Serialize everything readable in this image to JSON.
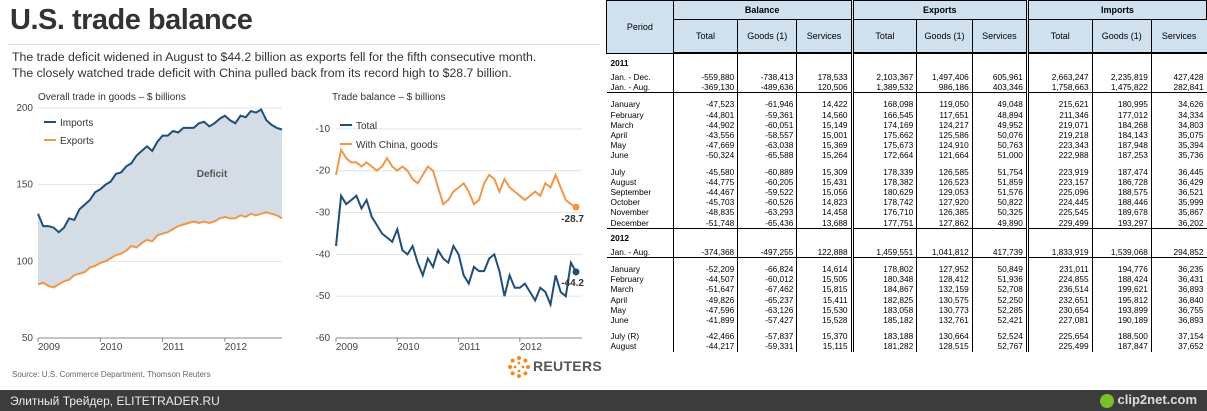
{
  "title": "U.S. trade balance",
  "subtitle_line1": "The trade deficit widened in August to $44.2 billion as exports fell for the fifth consecutive month.",
  "subtitle_line2": "The closely watched trade deficit with China pulled back from its record high to $28.7 billion.",
  "source": "Source: U.S. Commerce Department, Thomson Reuters",
  "logo_text": "REUTERS",
  "footer": {
    "left": "Элитный Трейдер, ELITETRADER.RU",
    "right": "clip2net.com"
  },
  "colors": {
    "imports": "#1f4e79",
    "exports": "#f0974a",
    "deficit_fill": "#d4dde6",
    "header_bg": "#cfe0ee",
    "logo": "#f28a1a"
  },
  "chart_data": [
    {
      "type": "area",
      "title": "Overall trade in goods – $ billions",
      "ylim": [
        50,
        200
      ],
      "y_ticks": [
        "200",
        "150",
        "100",
        "50"
      ],
      "x_ticks": [
        "2009",
        "2010",
        "2011",
        "2012"
      ],
      "annotation": "Deficit",
      "legend": [
        "Imports",
        "Exports"
      ],
      "series": [
        {
          "name": "Imports",
          "values": [
            131,
            123,
            123,
            122,
            119,
            122,
            128,
            127,
            134,
            137,
            140,
            145,
            147,
            150,
            152,
            157,
            158,
            162,
            164,
            169,
            172,
            175,
            172,
            178,
            182,
            182,
            185,
            184,
            187,
            187,
            187,
            190,
            191,
            188,
            190,
            193,
            195,
            192,
            190,
            195,
            194,
            198,
            197,
            199,
            192,
            189,
            187,
            186
          ]
        },
        {
          "name": "Exports",
          "values": [
            85,
            86,
            84,
            83,
            85,
            87,
            88,
            91,
            92,
            93,
            96,
            97,
            99,
            100,
            102,
            104,
            105,
            107,
            110,
            109,
            112,
            114,
            113,
            117,
            118,
            119,
            121,
            123,
            124,
            125,
            126,
            125,
            126,
            125,
            126,
            128,
            129,
            128,
            128,
            130,
            129,
            131,
            130,
            131,
            132,
            131,
            130,
            128
          ]
        }
      ]
    },
    {
      "type": "line",
      "title": "Trade balance – $ billions",
      "ylim": [
        -60,
        -5
      ],
      "y_ticks": [
        "-10",
        "-20",
        "-30",
        "-40",
        "-50",
        "-60"
      ],
      "x_ticks": [
        "2009",
        "2010",
        "2011",
        "2012"
      ],
      "legend": [
        "Total",
        "With China, goods"
      ],
      "end_labels": {
        "total": "-44.2",
        "china": "-28.7"
      },
      "series": [
        {
          "name": "Total",
          "values": [
            -38,
            -26,
            -28,
            -27,
            -26,
            -29,
            -27,
            -31,
            -33,
            -35,
            -36,
            -37,
            -34,
            -39,
            -40,
            -38,
            -42,
            -45,
            -41,
            -43,
            -39,
            -41,
            -42,
            -38,
            -40,
            -45,
            -47,
            -43,
            -44,
            -44,
            -41,
            -40,
            -44,
            -50,
            -45,
            -48,
            -48,
            -47,
            -49,
            -51,
            -48,
            -49,
            -52,
            -45,
            -49,
            -50,
            -42,
            -44.2
          ]
        },
        {
          "name": "With China, goods",
          "values": [
            -21,
            -15,
            -17,
            -18,
            -18,
            -19,
            -18,
            -19,
            -20,
            -19,
            -17,
            -19,
            -20,
            -19,
            -20,
            -22,
            -23,
            -21,
            -19,
            -20,
            -24,
            -28,
            -27,
            -25,
            -24,
            -23,
            -25,
            -28,
            -27,
            -23,
            -21,
            -22,
            -25,
            -22,
            -24,
            -25,
            -26,
            -27,
            -26,
            -25,
            -26,
            -23,
            -24,
            -21,
            -24,
            -27,
            -28,
            -28.7
          ]
        }
      ]
    }
  ],
  "table": {
    "period_label": "Period",
    "groups": [
      "Balance",
      "Exports",
      "Imports"
    ],
    "subheads": [
      "Total",
      "Goods (1)",
      "Services",
      "Total",
      "Goods (1)",
      "Services",
      "Total",
      "Goods (1)",
      "Services"
    ],
    "sections": [
      {
        "year": "2011",
        "blocks": [
          [
            [
              "Jan. - Dec.",
              "-559,880",
              "-738,413",
              "178,533",
              "2,103,367",
              "1,497,406",
              "605,961",
              "2,663,247",
              "2,235,819",
              "427,428"
            ],
            [
              "Jan. - Aug.",
              "-369,130",
              "-489,636",
              "120,506",
              "1,389,532",
              "986,186",
              "403,346",
              "1,758,663",
              "1,475,822",
              "282,841"
            ]
          ],
          [
            [
              "January",
              "-47,523",
              "-61,946",
              "14,422",
              "168,098",
              "119,050",
              "49,048",
              "215,621",
              "180,995",
              "34,626"
            ],
            [
              "February",
              "-44,801",
              "-59,361",
              "14,560",
              "166,545",
              "117,651",
              "48,894",
              "211,346",
              "177,012",
              "34,334"
            ],
            [
              "March",
              "-44,902",
              "-60,051",
              "15,149",
              "174,169",
              "124,217",
              "49,952",
              "219,071",
              "184,268",
              "34,803"
            ],
            [
              "April",
              "-43,556",
              "-58,557",
              "15,001",
              "175,662",
              "125,586",
              "50,076",
              "219,218",
              "184,143",
              "35,075"
            ],
            [
              "May",
              "-47,669",
              "-63,038",
              "15,369",
              "175,673",
              "124,910",
              "50,763",
              "223,343",
              "187,948",
              "35,394"
            ],
            [
              "June",
              "-50,324",
              "-65,588",
              "15,264",
              "172,664",
              "121,664",
              "51,000",
              "222,988",
              "187,253",
              "35,736"
            ]
          ],
          [
            [
              "July",
              "-45,580",
              "-60,889",
              "15,309",
              "178,339",
              "126,585",
              "51,754",
              "223,919",
              "187,474",
              "36,445"
            ],
            [
              "August",
              "-44,775",
              "-60,205",
              "15,431",
              "178,382",
              "126,523",
              "51,859",
              "223,157",
              "186,728",
              "36,429"
            ],
            [
              "September",
              "-44,467",
              "-59,522",
              "15,056",
              "180,629",
              "129,053",
              "51,576",
              "225,096",
              "188,575",
              "36,521"
            ],
            [
              "October",
              "-45,703",
              "-60,526",
              "14,823",
              "178,742",
              "127,920",
              "50,822",
              "224,445",
              "188,446",
              "35,999"
            ],
            [
              "November",
              "-48,835",
              "-63,293",
              "14,458",
              "176,710",
              "126,385",
              "50,325",
              "225,545",
              "189,678",
              "35,867"
            ],
            [
              "December",
              "-51,748",
              "-65,436",
              "13,688",
              "177,751",
              "127,862",
              "49,890",
              "229,499",
              "193,297",
              "36,202"
            ]
          ]
        ]
      },
      {
        "year": "2012",
        "blocks": [
          [
            [
              "Jan. - Aug.",
              "-374,368",
              "-497,255",
              "122,888",
              "1,459,551",
              "1,041,812",
              "417,739",
              "1,833,919",
              "1,539,068",
              "294,852"
            ]
          ],
          [
            [
              "January",
              "-52,209",
              "-66,824",
              "14,614",
              "178,802",
              "127,952",
              "50,849",
              "231,011",
              "194,776",
              "36,235"
            ],
            [
              "February",
              "-44,507",
              "-60,012",
              "15,505",
              "180,348",
              "128,412",
              "51,936",
              "224,855",
              "188,424",
              "36,431"
            ],
            [
              "March",
              "-51,647",
              "-67,462",
              "15,815",
              "184,867",
              "132,159",
              "52,708",
              "236,514",
              "199,621",
              "36,893"
            ],
            [
              "April",
              "-49,826",
              "-65,237",
              "15,411",
              "182,825",
              "130,575",
              "52,250",
              "232,651",
              "195,812",
              "36,840"
            ],
            [
              "May",
              "-47,596",
              "-63,126",
              "15,530",
              "183,058",
              "130,773",
              "52,285",
              "230,654",
              "193,899",
              "36,755"
            ],
            [
              "June",
              "-41,899",
              "-57,427",
              "15,528",
              "185,182",
              "132,761",
              "52,421",
              "227,081",
              "190,189",
              "36,893"
            ]
          ],
          [
            [
              "July (R)",
              "-42,466",
              "-57,837",
              "15,370",
              "183,188",
              "130,664",
              "52,524",
              "225,654",
              "188,500",
              "37,154"
            ],
            [
              "August",
              "-44,217",
              "-59,331",
              "15,115",
              "181,282",
              "128,515",
              "52,767",
              "225,499",
              "187,847",
              "37,652"
            ]
          ]
        ]
      }
    ]
  }
}
